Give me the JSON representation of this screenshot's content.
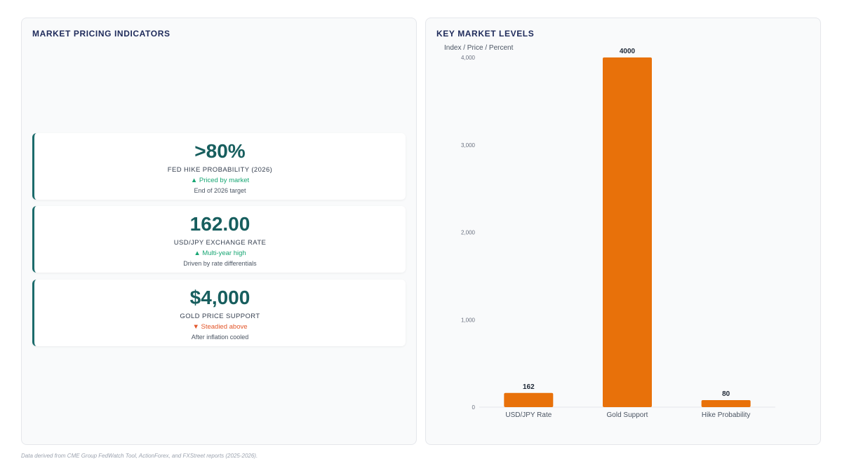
{
  "left_panel": {
    "title": "MARKET PRICING INDICATORS",
    "cards": [
      {
        "value": ">80%",
        "label": "FED HIKE PROBABILITY (2026)",
        "trend": "▲ Priced by market",
        "trend_direction": "up",
        "note": "End of 2026 target"
      },
      {
        "value": "162.00",
        "label": "USD/JPY EXCHANGE RATE",
        "trend": "▲ Multi-year high",
        "trend_direction": "up",
        "note": "Driven by rate differentials"
      },
      {
        "value": "$4,000",
        "label": "GOLD PRICE SUPPORT",
        "trend": "▼ Steadied above",
        "trend_direction": "down",
        "note": "After inflation cooled"
      }
    ]
  },
  "right_panel": {
    "title": "KEY MARKET LEVELS"
  },
  "chart_data": {
    "type": "bar",
    "title": "",
    "xlabel": "",
    "ylabel": "Index / Price / Percent",
    "categories": [
      "USD/JPY Rate",
      "Gold Support",
      "Hike Probability"
    ],
    "values": [
      162,
      4000,
      80
    ],
    "data_labels": [
      "162",
      "4000",
      "80"
    ],
    "ylim": [
      0,
      4000
    ],
    "yticks": [
      0,
      1000,
      2000,
      3000,
      4000
    ],
    "ytick_labels": [
      "0",
      "1,000",
      "2,000",
      "3,000",
      "4,000"
    ],
    "bar_color": "#e8710a",
    "grid": false,
    "legend": "none"
  },
  "footer": {
    "source_note": "Data derived from CME Group FedWatch Tool, ActionForex, and FXStreet reports (2025-2026)."
  }
}
